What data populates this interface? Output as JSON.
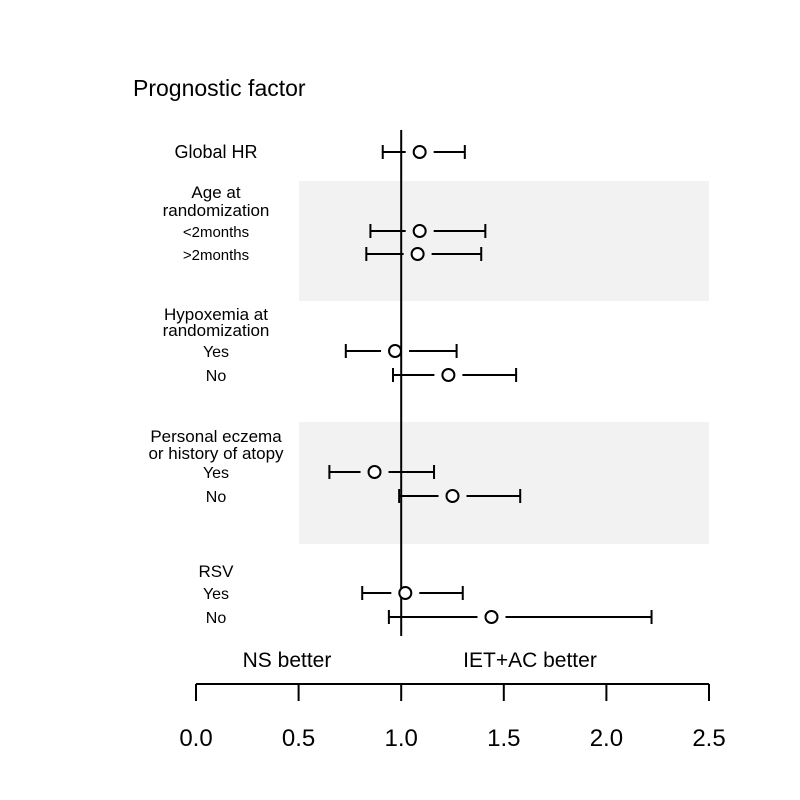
{
  "chart_data": {
    "type": "forest",
    "title": "Prognostic factor",
    "xlim": [
      0.0,
      2.5
    ],
    "x_ticks": [
      "0.0",
      "0.5",
      "1.0",
      "1.5",
      "2.0",
      "2.5"
    ],
    "reference_line": 1.0,
    "direction_labels": {
      "left": "NS better",
      "right": "IET+AC better"
    },
    "groups": [
      {
        "heading_lines": [],
        "shaded": false,
        "rows": [
          {
            "label": "Global HR",
            "estimate": 1.09,
            "lower": 0.91,
            "upper": 1.31
          }
        ]
      },
      {
        "heading_lines": [
          "Age at",
          "randomization"
        ],
        "shaded": true,
        "rows": [
          {
            "label": "<2months",
            "estimate": 1.09,
            "lower": 0.85,
            "upper": 1.41
          },
          {
            "label": ">2months",
            "estimate": 1.08,
            "lower": 0.83,
            "upper": 1.39
          }
        ]
      },
      {
        "heading_lines": [
          "Hypoxemia at",
          "randomization"
        ],
        "shaded": false,
        "rows": [
          {
            "label": "Yes",
            "estimate": 0.97,
            "lower": 0.73,
            "upper": 1.27
          },
          {
            "label": "No",
            "estimate": 1.23,
            "lower": 0.96,
            "upper": 1.56
          }
        ]
      },
      {
        "heading_lines": [
          "Personal eczema",
          "or history of atopy"
        ],
        "shaded": true,
        "rows": [
          {
            "label": "Yes",
            "estimate": 0.87,
            "lower": 0.65,
            "upper": 1.16
          },
          {
            "label": "No",
            "estimate": 1.25,
            "lower": 0.99,
            "upper": 1.58
          }
        ]
      },
      {
        "heading_lines": [
          "RSV"
        ],
        "shaded": false,
        "rows": [
          {
            "label": "Yes",
            "estimate": 1.02,
            "lower": 0.81,
            "upper": 1.3
          },
          {
            "label": "No",
            "estimate": 1.44,
            "lower": 0.94,
            "upper": 2.22
          }
        ]
      }
    ]
  }
}
